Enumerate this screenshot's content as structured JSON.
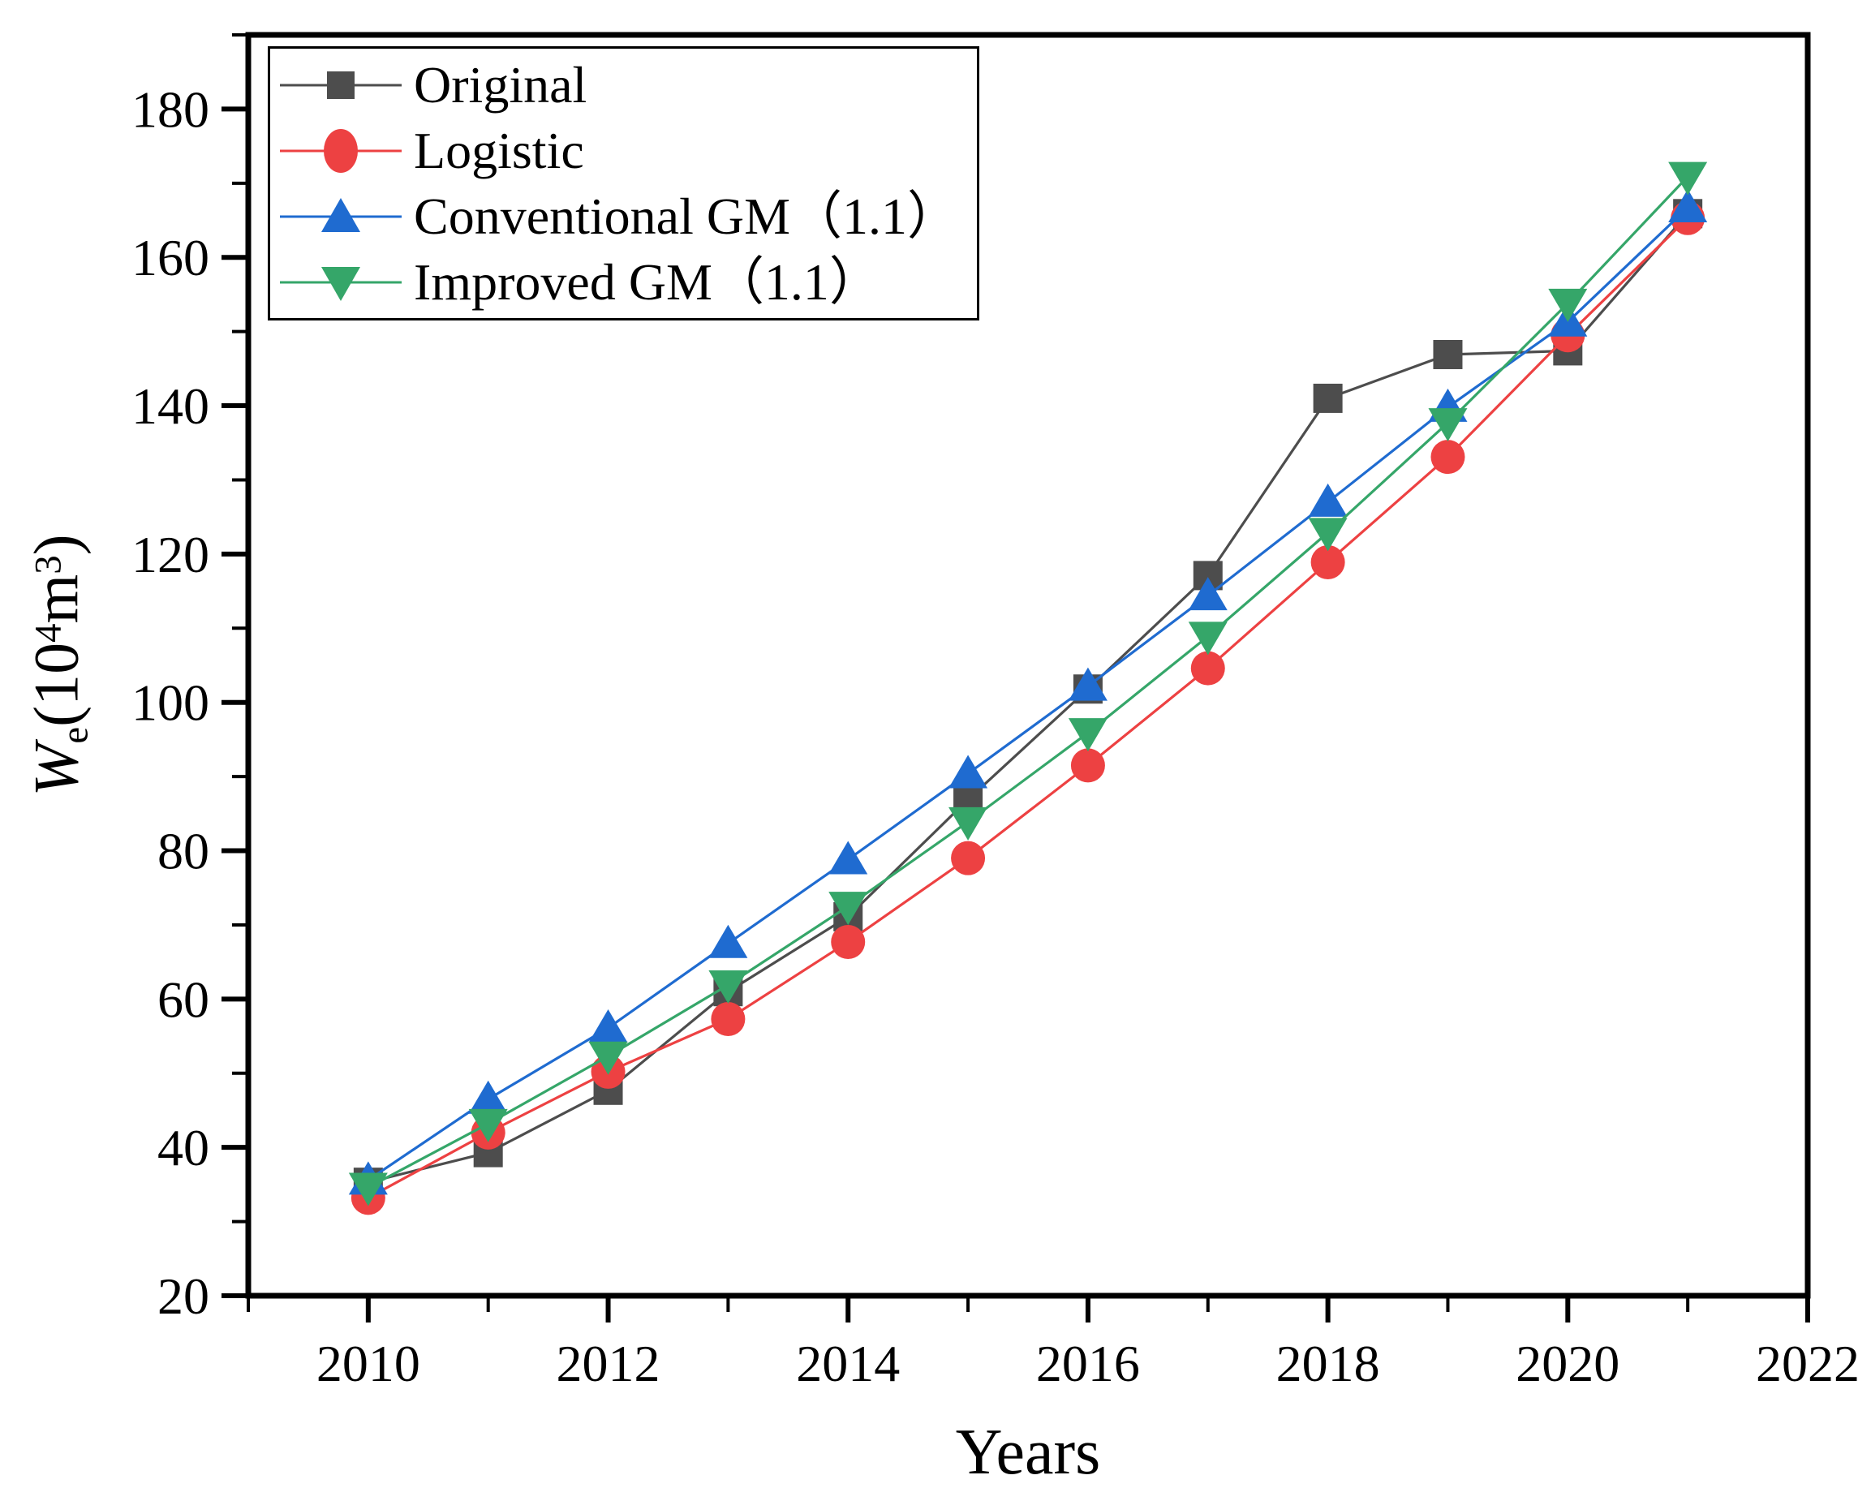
{
  "figure": {
    "background": "#ffffff",
    "ylabel": {
      "var": "W",
      "sub": "e",
      "p1": "(10",
      "sup1": "4",
      "p2": "m",
      "sup2": "3",
      "p3": ")"
    }
  },
  "chart_data": {
    "type": "line",
    "title": "",
    "xlabel": "Years",
    "ylabel": "We(10^4m^3)",
    "x": [
      2010,
      2011,
      2012,
      2013,
      2014,
      2015,
      2016,
      2017,
      2018,
      2019,
      2020,
      2021
    ],
    "series": [
      {
        "name": "Original",
        "color": "#4D4D4D",
        "marker": "square",
        "values": [
          35.3,
          39.3,
          47.7,
          61.0,
          71.1,
          86.9,
          101.8,
          117.1,
          141.0,
          146.9,
          147.4,
          165.9
        ]
      },
      {
        "name": "Logistic",
        "color": "#ED4142",
        "marker": "circle",
        "values": [
          33.2,
          42.0,
          50.2,
          57.3,
          67.7,
          79.0,
          91.5,
          104.6,
          118.9,
          133.1,
          149.5,
          165.3
        ]
      },
      {
        "name": "Conventional GM（1.1）",
        "color": "#1F6BD0",
        "marker": "triangle-up",
        "values": [
          35.6,
          46.5,
          56.1,
          67.5,
          78.8,
          90.4,
          102.2,
          114.4,
          127.0,
          139.8,
          151.3,
          166.7
        ]
      },
      {
        "name": "Improved GM（1.1）",
        "color": "#35A669",
        "marker": "triangle-down",
        "values": [
          34.6,
          43.2,
          52.3,
          61.9,
          72.5,
          83.9,
          95.9,
          108.9,
          122.9,
          137.7,
          153.8,
          170.9
        ]
      }
    ],
    "xlim": [
      2009,
      2022
    ],
    "ylim": [
      20,
      190
    ],
    "xticks": [
      2010,
      2012,
      2014,
      2016,
      2018,
      2020,
      2022
    ],
    "xticks_minor": [
      2009,
      2011,
      2013,
      2015,
      2017,
      2019,
      2021
    ],
    "yticks": [
      20,
      40,
      60,
      80,
      100,
      120,
      140,
      160,
      180
    ],
    "yticks_minor": [
      30,
      50,
      70,
      90,
      110,
      130,
      150,
      170,
      190
    ],
    "grid": false,
    "legend_position": "top-left"
  }
}
